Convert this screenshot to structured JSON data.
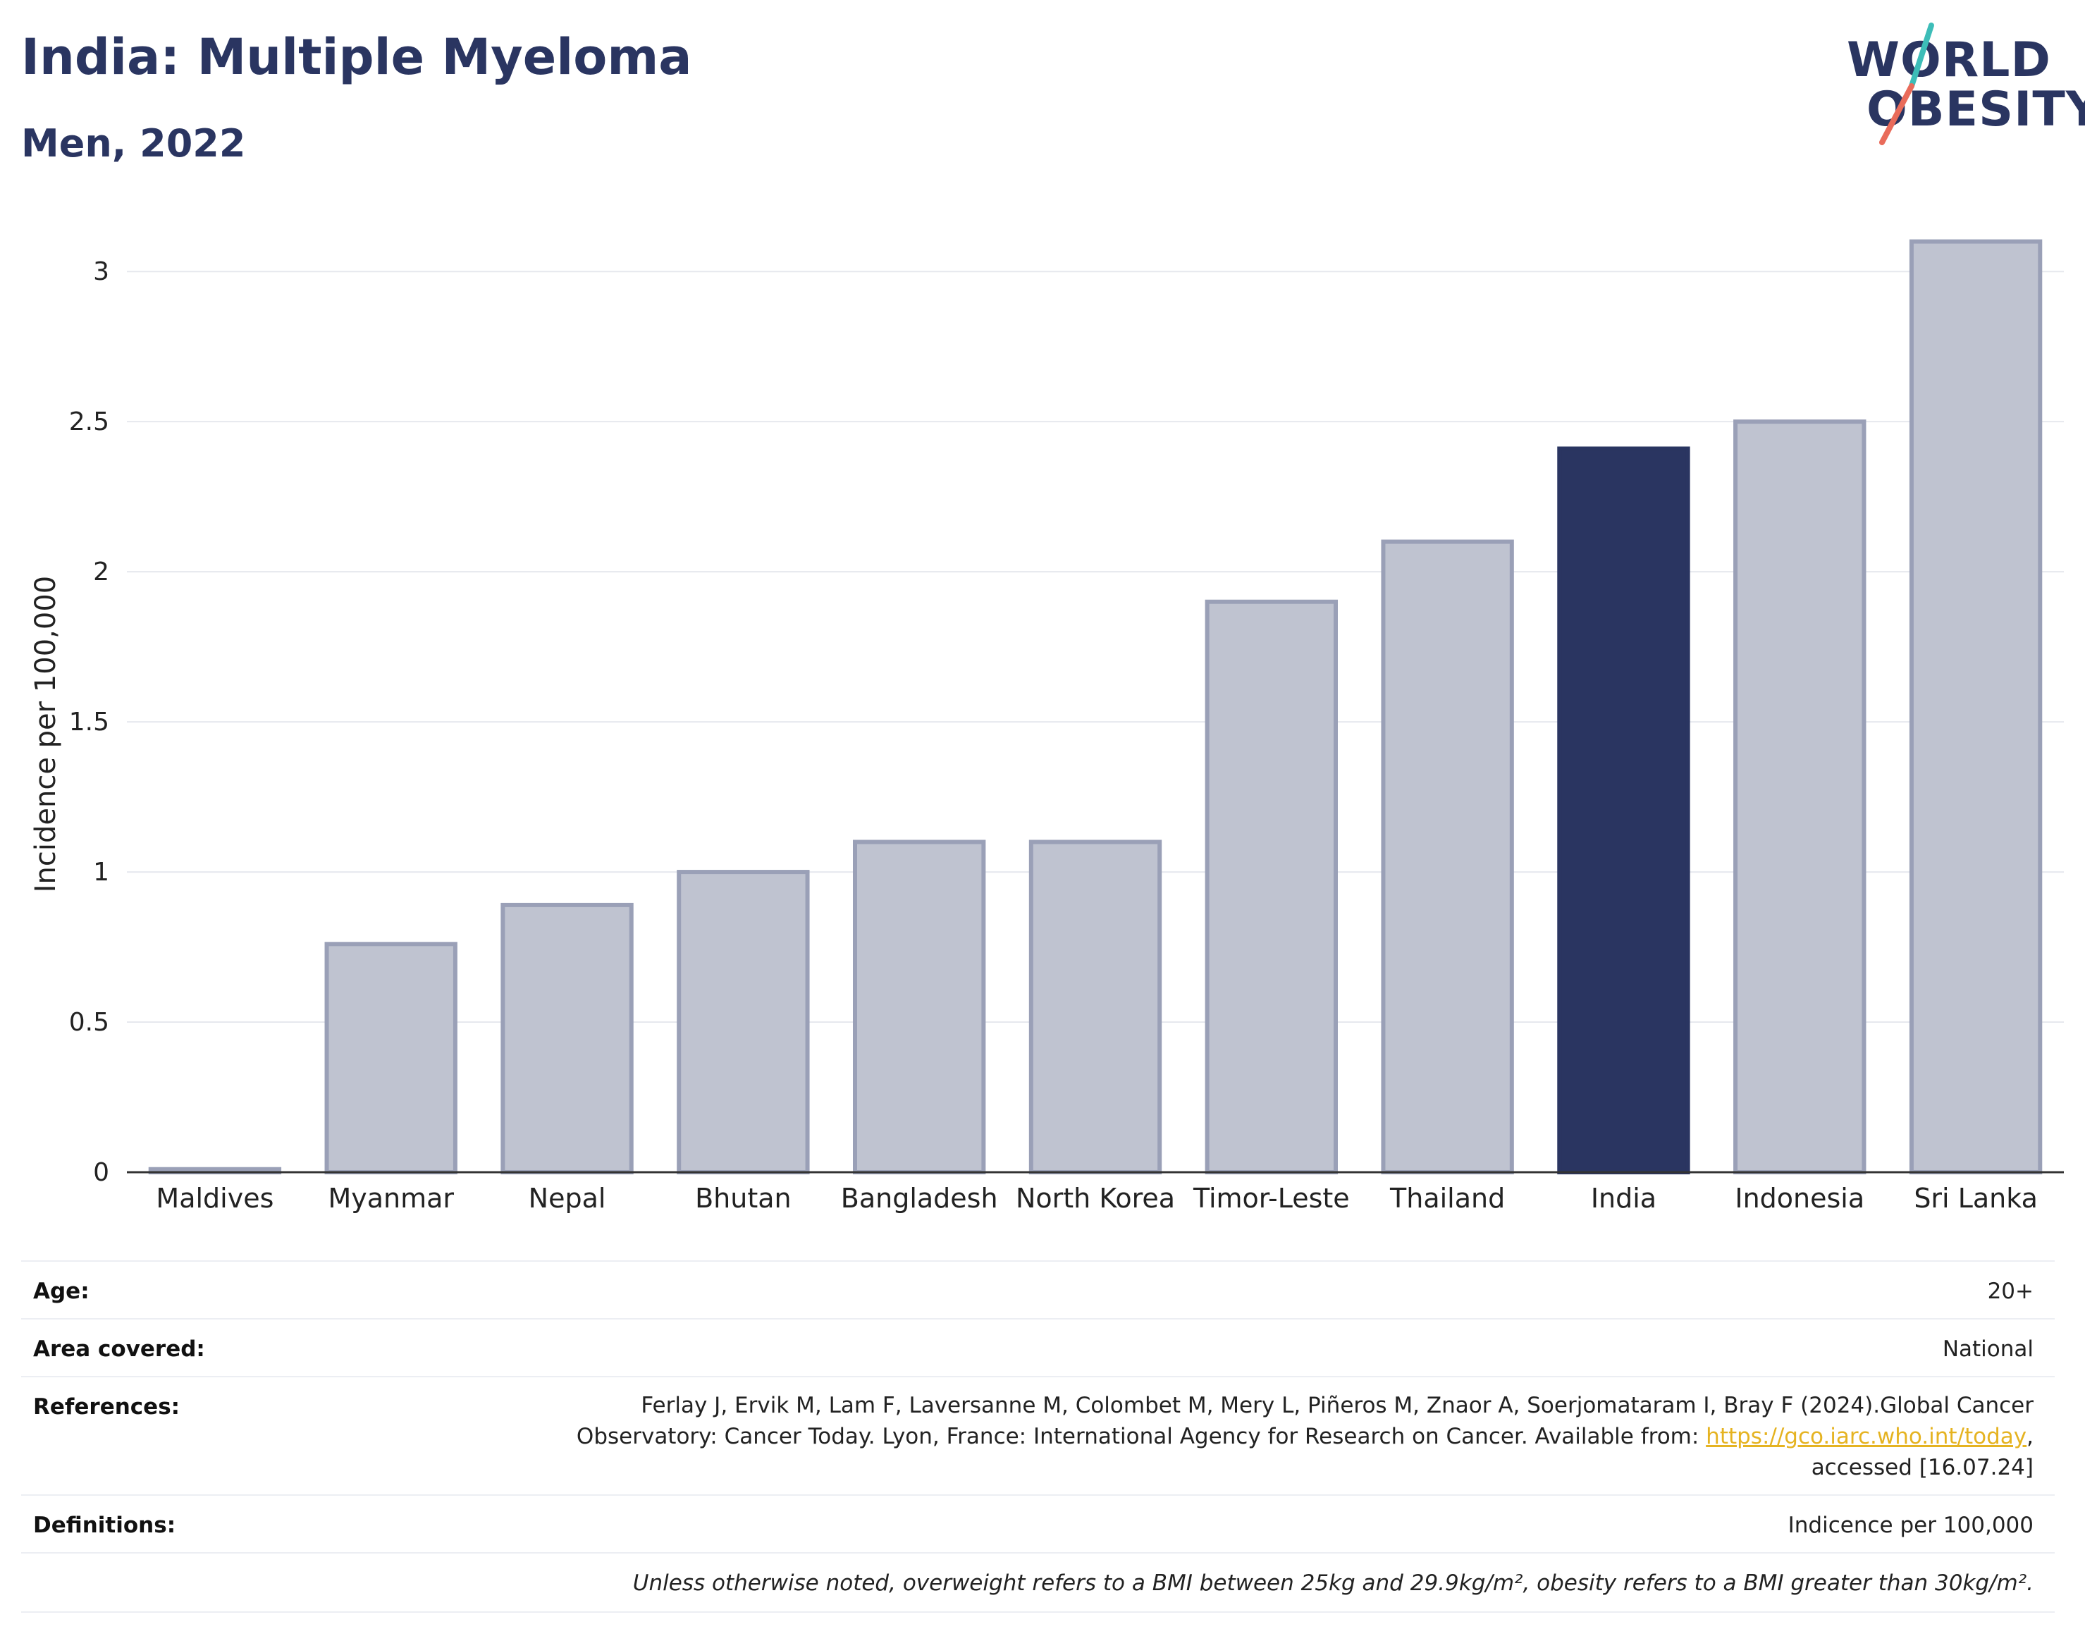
{
  "header": {
    "title": "India: Multiple Myeloma",
    "subtitle": "Men, 2022"
  },
  "logo": {
    "line1": "WORLD",
    "line2": "OBESITY",
    "text_color": "#2a3561",
    "slash_top_color": "#3dbdb8",
    "slash_bottom_color": "#e96b5a"
  },
  "chart_data": {
    "type": "bar",
    "ylabel": "Incidence per 100,000",
    "xlabel": "",
    "ylim": [
      0,
      3.2
    ],
    "yticks": [
      0,
      0.5,
      1,
      1.5,
      2,
      2.5,
      3
    ],
    "ytick_labels": [
      "0",
      "0.5",
      "1",
      "1.5",
      "2",
      "2.5",
      "3"
    ],
    "grid": true,
    "categories": [
      "Maldives",
      "Myanmar",
      "Nepal",
      "Bhutan",
      "Bangladesh",
      "North Korea",
      "Timor-Leste",
      "Thailand",
      "India",
      "Indonesia",
      "Sri Lanka"
    ],
    "values": [
      0.01,
      0.76,
      0.89,
      1.0,
      1.1,
      1.1,
      1.9,
      2.1,
      2.41,
      2.5,
      3.1
    ],
    "highlight": "India",
    "colors": {
      "bar": "#bfc3d0",
      "bar_border": "#9aa0b7",
      "highlight": "#2a3561",
      "grid": "#e6e8ee",
      "axis": "#333333"
    }
  },
  "info": {
    "age_label": "Age:",
    "age_value": "20+",
    "area_label": "Area covered:",
    "area_value": "National",
    "references_label": "References:",
    "references_line1": "Ferlay J, Ervik M, Lam F, Laversanne M, Colombet M, Mery L, Piñeros M, Znaor A, Soerjomataram I, Bray F (2024).Global Cancer",
    "references_line2_pre": "Observatory: Cancer Today. Lyon, France: International Agency for Research on Cancer. Available from: ",
    "references_link": "https://gco.iarc.who.int/today",
    "references_line2_post": ",",
    "references_line3": "accessed [16.07.24]",
    "definitions_label": "Definitions:",
    "definitions_value": "Indicence per 100,000",
    "note": "Unless otherwise noted, overweight refers to a BMI between 25kg and 29.9kg/m², obesity refers to a BMI greater than 30kg/m²."
  }
}
